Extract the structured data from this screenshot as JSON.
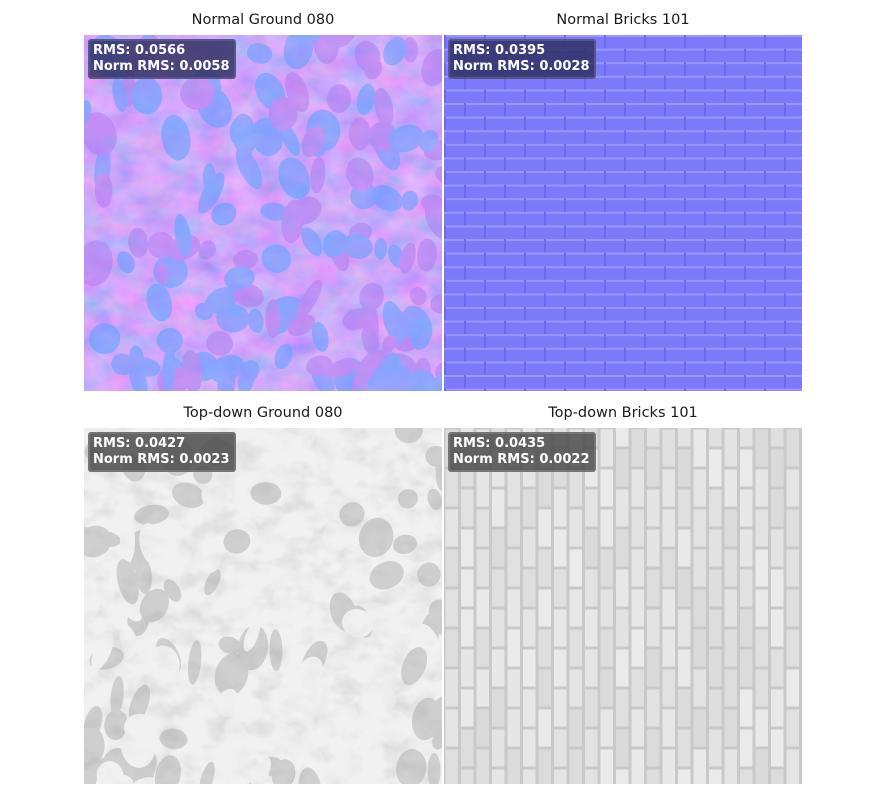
{
  "panels": [
    {
      "title": "Normal Ground 080",
      "rms_label": "RMS: 0.0566",
      "norm_rms_label": "Norm RMS: 0.0058",
      "texture": "normal-map-ground",
      "base_color": "#8080ff"
    },
    {
      "title": "Normal Bricks 101",
      "rms_label": "RMS: 0.0395",
      "norm_rms_label": "Norm RMS: 0.0028",
      "texture": "normal-map-bricks",
      "base_color": "#7f7dff"
    },
    {
      "title": "Top-down Ground 080",
      "rms_label": "RMS: 0.0427",
      "norm_rms_label": "Norm RMS: 0.0023",
      "texture": "topdown-ground-grayscale",
      "base_color": "#d4d4d4"
    },
    {
      "title": "Top-down Bricks 101",
      "rms_label": "RMS: 0.0435",
      "norm_rms_label": "Norm RMS: 0.0022",
      "texture": "topdown-bricks-grayscale",
      "base_color": "#e2e2e2"
    }
  ]
}
